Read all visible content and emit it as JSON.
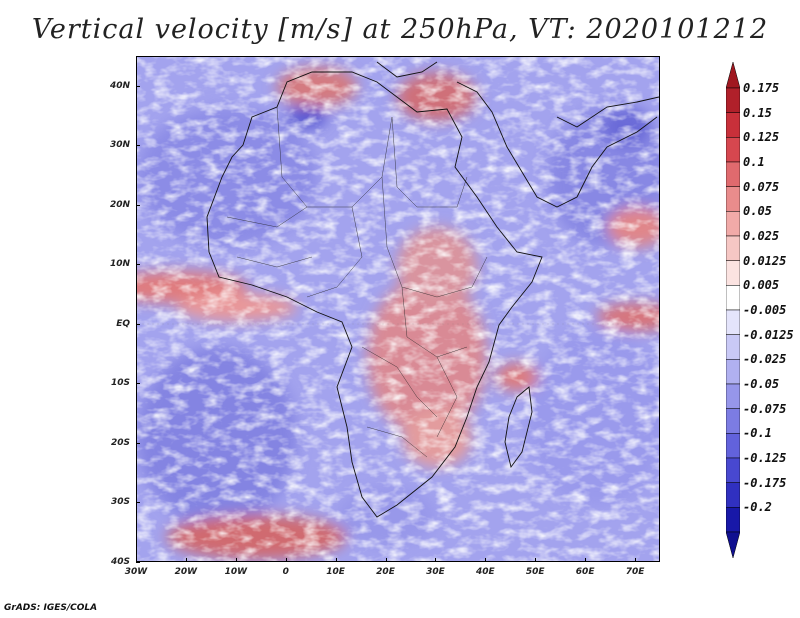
{
  "title": "Vertical velocity [m/s] at 250hPa, VT: 2020101212",
  "footer": "GrADS: IGES/COLA",
  "map": {
    "lon_range": [
      -30,
      75
    ],
    "lat_range": [
      -40,
      45
    ],
    "lat_ticks": [
      {
        "value": 40,
        "label": "40N"
      },
      {
        "value": 30,
        "label": "30N"
      },
      {
        "value": 20,
        "label": "20N"
      },
      {
        "value": 10,
        "label": "10N"
      },
      {
        "value": 0,
        "label": "EQ"
      },
      {
        "value": -10,
        "label": "10S"
      },
      {
        "value": -20,
        "label": "20S"
      },
      {
        "value": -30,
        "label": "30S"
      },
      {
        "value": -40,
        "label": "40S"
      }
    ],
    "lon_ticks": [
      {
        "value": -30,
        "label": "30W"
      },
      {
        "value": -20,
        "label": "20W"
      },
      {
        "value": -10,
        "label": "10W"
      },
      {
        "value": 0,
        "label": "0"
      },
      {
        "value": 10,
        "label": "10E"
      },
      {
        "value": 20,
        "label": "20E"
      },
      {
        "value": 30,
        "label": "30E"
      },
      {
        "value": 40,
        "label": "40E"
      },
      {
        "value": 50,
        "label": "50E"
      },
      {
        "value": 60,
        "label": "60E"
      },
      {
        "value": 70,
        "label": "70E"
      }
    ]
  },
  "colorbar": {
    "labels": [
      "0.175",
      "0.15",
      "0.125",
      "0.1",
      "0.075",
      "0.05",
      "0.025",
      "0.0125",
      "0.005",
      "-0.005",
      "-0.0125",
      "-0.025",
      "-0.05",
      "-0.075",
      "-0.1",
      "-0.125",
      "-0.175",
      "-0.2"
    ],
    "colors": [
      "#b0202a",
      "#c8303a",
      "#d6474f",
      "#e06a6e",
      "#e98c8c",
      "#f1aaa8",
      "#f6c7c4",
      "#fbe3e1",
      "#ffffff",
      "#e4e4fb",
      "#c9c9f6",
      "#b0b0f0",
      "#9696ea",
      "#7c7ce3",
      "#6262dc",
      "#4848d0",
      "#3030c0",
      "#1818a8"
    ],
    "top_tip_color": "#a01820",
    "bottom_tip_color": "#101090"
  },
  "icons": {
    "map": "velocity-field-map",
    "colorbar": "colorbar"
  }
}
